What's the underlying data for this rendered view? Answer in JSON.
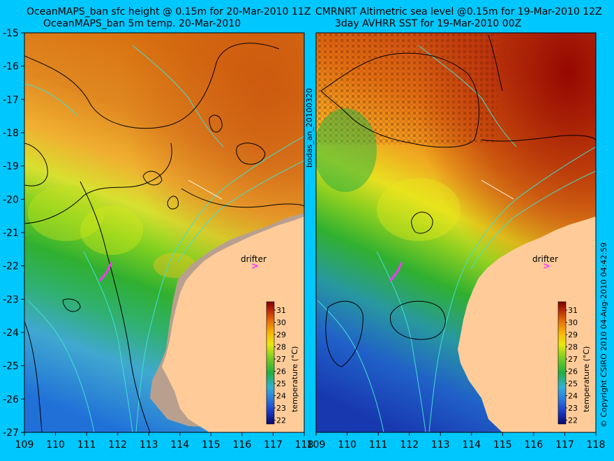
{
  "titles": {
    "left_line1": "OceanMAPS_ban sfc height @ 0.15m for 20-Mar-2010 11Z",
    "left_line2": "OceanMAPS_ban 5m temp. 20-Mar-2010",
    "right_line1": "CMRNRT Altimetric sea level  @0.15m  for 19-Mar-2010 12Z",
    "right_line2": "3day AVHRR SST for 19-Mar-2010 00Z"
  },
  "side_labels": {
    "middle": "bodas_an_20100320",
    "copyright": "© Copyright CSIRO 2010  04-Aug-2010 04:42:59"
  },
  "axes": {
    "latitudes": [
      -15,
      -16,
      -17,
      -18,
      -19,
      -20,
      -21,
      -22,
      -23,
      -24,
      -25,
      -26,
      -27
    ],
    "longitudes": [
      109,
      110,
      111,
      112,
      113,
      114,
      115,
      116,
      117,
      118
    ]
  },
  "colorbar": {
    "title": "temperature (°C)",
    "ticks": [
      31,
      30,
      29,
      28,
      27,
      26,
      25,
      24,
      23,
      22
    ]
  },
  "annotations": {
    "drifter_label": "drifter",
    "drifter_marker": ">"
  },
  "colors": {
    "background": "#00c8ff",
    "land": "#ffcc99",
    "model_land": "#bba08e",
    "contour": "#000000",
    "bathymetry": "#40e0d0",
    "drifter": "#ff33ff",
    "colormap": [
      "#08086e",
      "#1a38c8",
      "#2a78e0",
      "#30b0d8",
      "#20b040",
      "#80d020",
      "#e8e810",
      "#f8b808",
      "#e87008",
      "#b82808",
      "#800000"
    ]
  }
}
